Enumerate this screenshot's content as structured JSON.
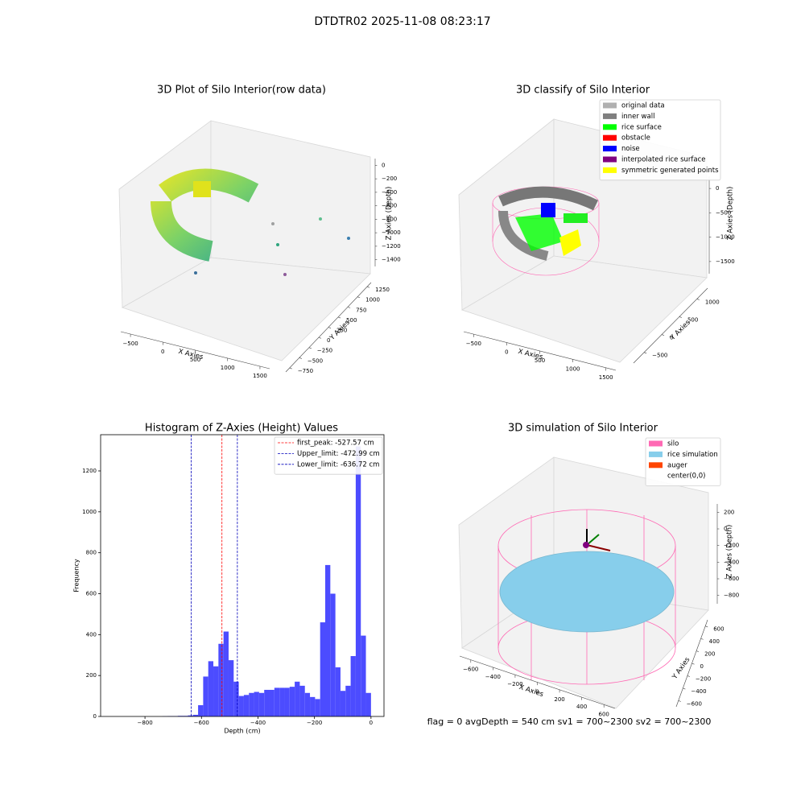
{
  "suptitle": "DTDTR02 2025-11-08 08:23:17",
  "footer": "flag = 0     avgDepth = 540 cm  sv1 = 700~2300  sv2 = 700~2300",
  "chart_data": [
    {
      "type": "scatter3d",
      "title": "3D Plot of Silo Interior(row data)",
      "xlabel": "X Axies",
      "ylabel": "Y Axies",
      "zlabel": "Z Axies (Depth)",
      "xlim": [
        -650,
        1650
      ],
      "xticks": [
        {
          "value": -500,
          "label": "−500"
        },
        0,
        500,
        1000,
        1500
      ],
      "ylim": [
        -850,
        1350
      ],
      "yticks": [
        {
          "value": -750,
          "label": "−750"
        },
        {
          "value": -500,
          "label": "−500"
        },
        {
          "value": -250,
          "label": "−250"
        },
        0,
        250,
        500,
        750,
        1000,
        1250
      ],
      "zlim": [
        -1500,
        100
      ],
      "zticks": [
        0,
        {
          "value": -200,
          "label": "−200"
        },
        {
          "value": -400,
          "label": "−400"
        },
        {
          "value": -600,
          "label": "−600"
        },
        {
          "value": -800,
          "label": "−800"
        },
        {
          "value": -1000,
          "label": "−1000"
        },
        {
          "value": -1200,
          "label": "−1200"
        },
        {
          "value": -1400,
          "label": "−1400"
        }
      ]
    },
    {
      "type": "scatter3d",
      "title": "3D classify of Silo Interior",
      "xlabel": "X Axies",
      "ylabel": "Y Axies",
      "zlabel": "Z Axies (Depth)",
      "xlim": [
        -650,
        1650
      ],
      "xticks": [
        {
          "value": -500,
          "label": "−500"
        },
        0,
        500,
        1000,
        1500
      ],
      "ylim": [
        -800,
        1300
      ],
      "yticks": [
        {
          "value": -500,
          "label": "−500"
        },
        0,
        500,
        1000
      ],
      "zlim": [
        -1750,
        250
      ],
      "zticks": [
        0,
        {
          "value": -500,
          "label": "−500"
        },
        {
          "value": -1000,
          "label": "−1000"
        },
        {
          "value": -1500,
          "label": "−1500"
        }
      ],
      "legend": [
        {
          "name": "original data",
          "color": "#b0b0b0"
        },
        {
          "name": "inner wall",
          "color": "#808080"
        },
        {
          "name": "rice surface",
          "color": "#00ff00"
        },
        {
          "name": "obstacle",
          "color": "#ff0000"
        },
        {
          "name": "noise",
          "color": "#0000ff"
        },
        {
          "name": "interpolated rice surface",
          "color": "#800080"
        },
        {
          "name": "symmetric generated points",
          "color": "#ffff00"
        }
      ]
    },
    {
      "type": "histogram",
      "title": "Histogram of Z-Axies (Height) Values",
      "xlabel": "Depth (cm)",
      "ylabel": "Frequency",
      "color": "#4c4cff",
      "xlim": [
        -957,
        46
      ],
      "xticks": [
        {
          "value": -800,
          "label": "−800"
        },
        {
          "value": -600,
          "label": "−600"
        },
        {
          "value": -400,
          "label": "−400"
        },
        {
          "value": -200,
          "label": "−200"
        },
        0
      ],
      "ylim": [
        0,
        1377
      ],
      "yticks": [
        0,
        200,
        400,
        600,
        800,
        1000,
        1200
      ],
      "bins": [
        -900,
        -882,
        -864,
        -846,
        -828,
        -810,
        -792,
        -774,
        -756,
        -738,
        -720,
        -702,
        -684,
        -666,
        -648,
        -630,
        -612,
        -594,
        -576,
        -558,
        -540,
        -522,
        -504,
        -486,
        -468,
        -450,
        -432,
        -414,
        -396,
        -378,
        -360,
        -342,
        -324,
        -306,
        -288,
        -270,
        -252,
        -234,
        -216,
        -198,
        -180,
        -162,
        -144,
        -126,
        -108,
        -90,
        -72,
        -54,
        -36,
        -18,
        0
      ],
      "counts": [
        0,
        0,
        0,
        0,
        0,
        0,
        0,
        0,
        0,
        1,
        2,
        2,
        3,
        3,
        5,
        8,
        55,
        195,
        270,
        245,
        355,
        415,
        275,
        170,
        100,
        105,
        115,
        120,
        115,
        130,
        130,
        140,
        140,
        140,
        145,
        170,
        150,
        115,
        95,
        85,
        460,
        740,
        600,
        240,
        125,
        150,
        295,
        1320,
        395,
        115
      ],
      "lines": [
        {
          "label": "first_peak: -527.57 cm",
          "value": -527.57,
          "color": "#ff0000"
        },
        {
          "label": "Upper_limit: -472.99 cm",
          "value": -472.99,
          "color": "#0000bb"
        },
        {
          "label": "Lower_limit: -636.72 cm",
          "value": -636.72,
          "color": "#0000bb"
        }
      ]
    },
    {
      "type": "scatter3d",
      "title": "3D simulation of Silo Interior",
      "xlabel": "X Axies",
      "ylabel": "Y Axies",
      "zlabel": "Z Axies (Depth)",
      "xlim": [
        -700,
        700
      ],
      "xticks": [
        {
          "value": -600,
          "label": "−600"
        },
        {
          "value": -400,
          "label": "−400"
        },
        {
          "value": -200,
          "label": "−200"
        },
        0,
        200,
        400,
        600
      ],
      "ylim": [
        -700,
        700
      ],
      "yticks": [
        {
          "value": -600,
          "label": "−600"
        },
        {
          "value": -400,
          "label": "−400"
        },
        {
          "value": -200,
          "label": "−200"
        },
        0,
        200,
        400,
        600
      ],
      "zlim": [
        -900,
        300
      ],
      "zticks": [
        200,
        0,
        {
          "value": -200,
          "label": "−200"
        },
        {
          "value": -400,
          "label": "−400"
        },
        {
          "value": -600,
          "label": "−600"
        },
        {
          "value": -800,
          "label": "−800"
        }
      ],
      "legend": [
        {
          "name": "silo",
          "color": "#ff69b4"
        },
        {
          "name": "rice simulation",
          "color": "#87ceeb"
        },
        {
          "name": "auger",
          "color": "#ff4500"
        },
        {
          "name": "center(0,0)"
        }
      ]
    }
  ]
}
